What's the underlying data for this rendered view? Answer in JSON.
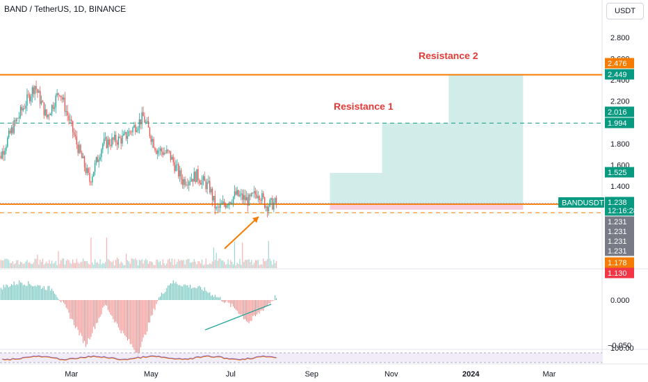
{
  "header": {
    "title": "BAND / TetherUS, 1D, BINANCE",
    "currency": "USDT"
  },
  "annotations": {
    "resistance1": "Resistance 1",
    "resistance2": "Resistance 2"
  },
  "colors": {
    "up": "#26a69a",
    "down": "#ef5350",
    "orange": "#f57c00",
    "green_dash": "#089981",
    "red_label": "#f23645",
    "gray_label": "#787b86",
    "teal_box": "#b2dfdb",
    "pink_box": "#f8bbd0",
    "resistance_text": "#e53935"
  },
  "chart_data": [
    {
      "type": "candlestick",
      "title": "BAND / TetherUS, 1D, BINANCE",
      "x_tick_labels": [
        "Mar",
        "May",
        "Jul",
        "Sep",
        "Nov",
        "2024",
        "Mar"
      ],
      "y_tick_labels": [
        "2.800",
        "2.600",
        "2.400",
        "2.200",
        "1.800",
        "1.600",
        "1.400"
      ],
      "ylim": [
        1.1,
        3.0
      ],
      "close_path": [
        {
          "date": "2023-01-01",
          "close": 1.55
        },
        {
          "date": "2023-01-15",
          "close": 1.95
        },
        {
          "date": "2023-02-01",
          "close": 2.35
        },
        {
          "date": "2023-02-10",
          "close": 2.05
        },
        {
          "date": "2023-02-20",
          "close": 2.3
        },
        {
          "date": "2023-03-05",
          "close": 1.8
        },
        {
          "date": "2023-03-15",
          "close": 1.45
        },
        {
          "date": "2023-03-25",
          "close": 1.8
        },
        {
          "date": "2023-04-10",
          "close": 1.85
        },
        {
          "date": "2023-04-25",
          "close": 2.05
        },
        {
          "date": "2023-05-05",
          "close": 1.75
        },
        {
          "date": "2023-05-15",
          "close": 1.7
        },
        {
          "date": "2023-05-25",
          "close": 1.45
        },
        {
          "date": "2023-06-05",
          "close": 1.5
        },
        {
          "date": "2023-06-15",
          "close": 1.38
        },
        {
          "date": "2023-06-20",
          "close": 1.17
        },
        {
          "date": "2023-06-28",
          "close": 1.25
        },
        {
          "date": "2023-07-05",
          "close": 1.32
        },
        {
          "date": "2023-07-15",
          "close": 1.26
        },
        {
          "date": "2023-07-22",
          "close": 1.35
        },
        {
          "date": "2023-07-28",
          "close": 1.22
        },
        {
          "date": "2023-08-05",
          "close": 1.24
        }
      ],
      "horizontal_levels": [
        {
          "price": 2.449,
          "style": "solid",
          "color": "#f57c00"
        },
        {
          "price": 1.994,
          "style": "dashed",
          "color": "#089981"
        },
        {
          "price": 1.231,
          "style": "solid",
          "color": "#f57c00"
        },
        {
          "price": 1.15,
          "style": "dashed",
          "color": "#f57c00"
        }
      ],
      "target_boxes": [
        {
          "from": "2023-09-15",
          "to": "2023-10-25",
          "top": 1.525
        },
        {
          "from": "2023-10-25",
          "to": "2023-12-15",
          "top": 1.994
        },
        {
          "from": "2023-12-15",
          "to": "2024-02-10",
          "top": 2.449
        }
      ],
      "risk_box": {
        "from": "2023-09-15",
        "to": "2024-02-10",
        "top": 1.238,
        "bottom": 1.178
      },
      "price_labels": [
        {
          "text": "2.476",
          "color": "#f57c00"
        },
        {
          "text": "2.449",
          "color": "#089981"
        },
        {
          "text": "2.016",
          "color": "#089981"
        },
        {
          "text": "1.994",
          "color": "#089981"
        },
        {
          "text": "1.525",
          "color": "#089981"
        },
        {
          "text": "1.238",
          "color": "#089981"
        },
        {
          "text": "12:16:28",
          "color": "#089981"
        },
        {
          "text": "1.231",
          "color": "#787b86"
        },
        {
          "text": "1.231",
          "color": "#787b86"
        },
        {
          "text": "1.231",
          "color": "#787b86"
        },
        {
          "text": "1.231",
          "color": "#787b86"
        },
        {
          "text": "1.178",
          "color": "#f57c00"
        },
        {
          "text": "1.130",
          "color": "#f23645"
        }
      ],
      "symbol_tag": "BANDUSDT"
    },
    {
      "type": "bar",
      "title": "",
      "y_tick_labels": [
        "0.000",
        "−0.050"
      ],
      "ylim": [
        -0.055,
        0.03
      ]
    },
    {
      "type": "line",
      "title": "",
      "y_tick_labels": [
        "100.00"
      ]
    }
  ]
}
